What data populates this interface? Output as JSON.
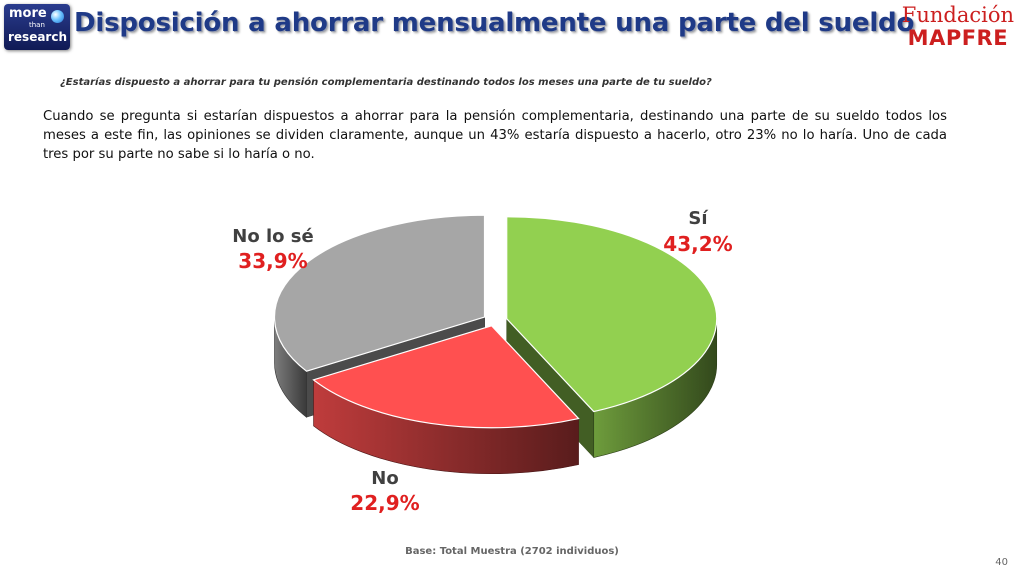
{
  "header": {
    "logo": {
      "line1": "more",
      "line2": "than",
      "line3": "research"
    },
    "title": "Disposición a ahorrar mensualmente una parte del sueldo",
    "brand": {
      "line1": "Fundación",
      "line2": "MAPFRE"
    }
  },
  "question": "¿Estarías dispuesto a ahorrar para tu pensión complementaria destinando todos los meses una parte de tu sueldo?",
  "paragraph": "Cuando se pregunta si estarían dispuestos a ahorrar para la pensión complementaria, destinando una parte de su sueldo todos los meses a este fin, las opiniones se dividen claramente, aunque un 43% estaría dispuesto a hacerlo, otro 23% no lo haría. Uno de cada tres por su parte no sabe si lo haría o no.",
  "footer": {
    "base": "Base: Total Muestra (2702 individuos)",
    "page": "40"
  },
  "chart_data": {
    "type": "pie",
    "style": "3d-exploded",
    "categories": [
      "Sí",
      "No",
      "No lo sé"
    ],
    "values": [
      43.2,
      22.9,
      33.9
    ],
    "labels": [
      "43,2%",
      "22,9%",
      "33,9%"
    ],
    "colors": [
      "#92d050",
      "#ff5050",
      "#a6a6a6"
    ],
    "value_label_color": "#e02020"
  }
}
